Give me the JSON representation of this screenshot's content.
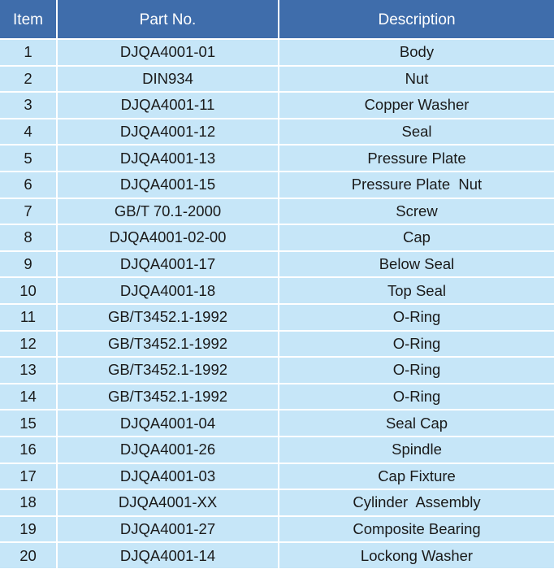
{
  "colors": {
    "header": "#3f6dab",
    "row": "#c6e6f8"
  },
  "headers": {
    "item": "Item",
    "part_no": "Part No.",
    "description": "Description"
  },
  "rows": [
    {
      "item": "1",
      "part_no": "DJQA4001-01",
      "description": "Body"
    },
    {
      "item": "2",
      "part_no": "DIN934",
      "description": "Nut"
    },
    {
      "item": "3",
      "part_no": "DJQA4001-11",
      "description": "Copper Washer"
    },
    {
      "item": "4",
      "part_no": "DJQA4001-12",
      "description": "Seal"
    },
    {
      "item": "5",
      "part_no": "DJQA4001-13",
      "description": "Pressure Plate"
    },
    {
      "item": "6",
      "part_no": "DJQA4001-15",
      "description": "Pressure Plate  Nut"
    },
    {
      "item": "7",
      "part_no": "GB/T 70.1-2000",
      "description": "Screw"
    },
    {
      "item": "8",
      "part_no": "DJQA4001-02-00",
      "description": "Cap"
    },
    {
      "item": "9",
      "part_no": "DJQA4001-17",
      "description": "Below Seal"
    },
    {
      "item": "10",
      "part_no": "DJQA4001-18",
      "description": "Top Seal"
    },
    {
      "item": "11",
      "part_no": "GB/T3452.1-1992",
      "description": "O-Ring"
    },
    {
      "item": "12",
      "part_no": "GB/T3452.1-1992",
      "description": "O-Ring"
    },
    {
      "item": "13",
      "part_no": "GB/T3452.1-1992",
      "description": "O-Ring"
    },
    {
      "item": "14",
      "part_no": "GB/T3452.1-1992",
      "description": "O-Ring"
    },
    {
      "item": "15",
      "part_no": "DJQA4001-04",
      "description": "Seal Cap"
    },
    {
      "item": "16",
      "part_no": "DJQA4001-26",
      "description": "Spindle"
    },
    {
      "item": "17",
      "part_no": "DJQA4001-03",
      "description": "Cap Fixture"
    },
    {
      "item": "18",
      "part_no": "DJQA4001-XX",
      "description": "Cylinder  Assembly"
    },
    {
      "item": "19",
      "part_no": "DJQA4001-27",
      "description": "Composite Bearing"
    },
    {
      "item": "20",
      "part_no": "DJQA4001-14",
      "description": "Lockong Washer"
    }
  ]
}
